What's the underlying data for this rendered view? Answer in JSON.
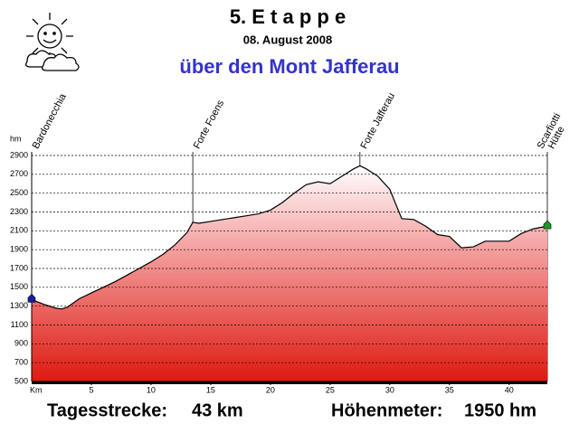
{
  "chart_data": {
    "type": "area",
    "title": "5. E t a p p e",
    "date": "08. August 2008",
    "subtitle": "über den Mont Jafferau",
    "y_label": "hm",
    "x_label": "Km",
    "x": [
      0,
      1,
      2,
      2.5,
      3,
      4,
      5,
      6,
      7,
      8,
      9,
      10,
      11,
      12,
      13,
      13.5,
      14,
      15,
      16,
      17,
      18,
      19,
      20,
      21,
      22,
      23,
      24,
      25,
      26,
      27,
      27.5,
      28,
      29,
      30,
      31,
      32,
      33,
      34,
      35,
      36,
      37,
      38,
      39,
      40,
      41,
      42,
      43.2
    ],
    "values": [
      1370,
      1320,
      1280,
      1270,
      1290,
      1380,
      1440,
      1500,
      1560,
      1630,
      1700,
      1770,
      1850,
      1950,
      2080,
      2190,
      2180,
      2200,
      2220,
      2240,
      2260,
      2280,
      2320,
      2400,
      2500,
      2590,
      2620,
      2600,
      2680,
      2760,
      2790,
      2760,
      2680,
      2540,
      2230,
      2220,
      2150,
      2060,
      2040,
      1920,
      1930,
      1990,
      1990,
      1990,
      2070,
      2120,
      2150
    ],
    "xlim": [
      0,
      43.2
    ],
    "ylim": [
      500,
      2900
    ],
    "xticks": [
      5,
      10,
      15,
      20,
      25,
      30,
      35,
      40
    ],
    "yticks": [
      500,
      700,
      900,
      1100,
      1300,
      1500,
      1700,
      1900,
      2100,
      2300,
      2500,
      2700,
      2900
    ],
    "grid": true,
    "annotations": [
      {
        "lines": [
          "Bardonecchia"
        ],
        "x": 0
      },
      {
        "lines": [
          "Forte Foens"
        ],
        "x": 13.5
      },
      {
        "lines": [
          "Forte Jafferau"
        ],
        "x": 27.5
      },
      {
        "lines": [
          "Scarfiotti",
          "Hütte"
        ],
        "x": 43.2
      }
    ],
    "summary": {
      "distance_label": "Tagesstrecke:",
      "distance": "43 km",
      "climb_label": "Höhenmeter:",
      "climb": "1950 hm"
    }
  }
}
